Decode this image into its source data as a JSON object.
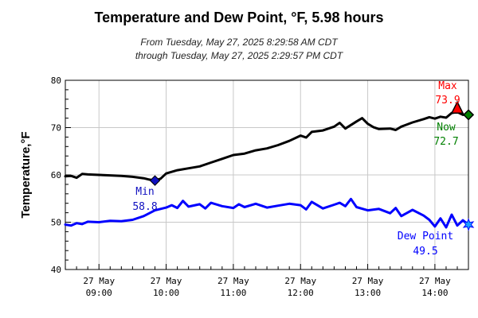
{
  "header": {
    "title": "Temperature and Dew Point, °F, 5.98 hours",
    "subtitle_line1": "From Tuesday, May 27, 2025 8:29:58 AM CDT",
    "subtitle_line2": "through Tuesday, May 27, 2025 2:29:57 PM CDT"
  },
  "colors": {
    "temperature": "#000000",
    "dew_point": "#0000ff",
    "max": "#ff0000",
    "now": "#008000",
    "min": "#1010c0",
    "grid": "#c8c8c8"
  },
  "chart_data": {
    "type": "line",
    "title": "Temperature and Dew Point, °F, 5.98 hours",
    "ylabel": "Temperature,°F",
    "xlabel": "",
    "ylim": [
      40,
      80
    ],
    "yticks": [
      "40",
      "50",
      "60",
      "70",
      "80"
    ],
    "x_range": [
      "08:29:58",
      "14:29:57"
    ],
    "xticks": [
      {
        "date": "27 May",
        "time": "09:00"
      },
      {
        "date": "27 May",
        "time": "10:00"
      },
      {
        "date": "27 May",
        "time": "11:00"
      },
      {
        "date": "27 May",
        "time": "12:00"
      },
      {
        "date": "27 May",
        "time": "13:00"
      },
      {
        "date": "27 May",
        "time": "14:00"
      }
    ],
    "grid": true,
    "series": [
      {
        "key": "temperature",
        "color": "#000000",
        "points": [
          [
            "08:30",
            59.7
          ],
          [
            "08:35",
            59.8
          ],
          [
            "08:40",
            59.4
          ],
          [
            "08:45",
            60.2
          ],
          [
            "08:50",
            60.1
          ],
          [
            "09:00",
            60.0
          ],
          [
            "09:10",
            59.9
          ],
          [
            "09:20",
            59.8
          ],
          [
            "09:30",
            59.6
          ],
          [
            "09:40",
            59.3
          ],
          [
            "09:45",
            59.0
          ],
          [
            "09:50",
            58.8
          ],
          [
            "09:55",
            59.2
          ],
          [
            "10:00",
            60.3
          ],
          [
            "10:10",
            61.0
          ],
          [
            "10:20",
            61.4
          ],
          [
            "10:30",
            61.8
          ],
          [
            "10:40",
            62.6
          ],
          [
            "10:50",
            63.4
          ],
          [
            "11:00",
            64.2
          ],
          [
            "11:10",
            64.5
          ],
          [
            "11:20",
            65.2
          ],
          [
            "11:30",
            65.6
          ],
          [
            "11:40",
            66.3
          ],
          [
            "11:50",
            67.2
          ],
          [
            "12:00",
            68.3
          ],
          [
            "12:05",
            67.9
          ],
          [
            "12:10",
            69.1
          ],
          [
            "12:20",
            69.4
          ],
          [
            "12:30",
            70.2
          ],
          [
            "12:35",
            71.0
          ],
          [
            "12:40",
            69.8
          ],
          [
            "12:50",
            71.3
          ],
          [
            "12:55",
            72.0
          ],
          [
            "13:00",
            70.8
          ],
          [
            "13:05",
            70.1
          ],
          [
            "13:10",
            69.7
          ],
          [
            "13:20",
            69.8
          ],
          [
            "13:25",
            69.5
          ],
          [
            "13:30",
            70.2
          ],
          [
            "13:40",
            71.1
          ],
          [
            "13:50",
            71.8
          ],
          [
            "13:55",
            72.2
          ],
          [
            "14:00",
            71.9
          ],
          [
            "14:05",
            72.3
          ],
          [
            "14:10",
            72.1
          ],
          [
            "14:15",
            73.1
          ],
          [
            "14:20",
            73.3
          ],
          [
            "14:25",
            72.7
          ],
          [
            "14:30",
            72.7
          ]
        ]
      },
      {
        "key": "dew_point",
        "color": "#0000ff",
        "points": [
          [
            "08:30",
            49.5
          ],
          [
            "08:35",
            49.3
          ],
          [
            "08:40",
            49.8
          ],
          [
            "08:45",
            49.6
          ],
          [
            "08:50",
            50.1
          ],
          [
            "09:00",
            50.0
          ],
          [
            "09:10",
            50.3
          ],
          [
            "09:20",
            50.2
          ],
          [
            "09:30",
            50.5
          ],
          [
            "09:40",
            51.3
          ],
          [
            "09:50",
            52.5
          ],
          [
            "10:00",
            53.1
          ],
          [
            "10:05",
            53.6
          ],
          [
            "10:10",
            53.0
          ],
          [
            "10:15",
            54.5
          ],
          [
            "10:20",
            53.3
          ],
          [
            "10:30",
            53.8
          ],
          [
            "10:35",
            52.9
          ],
          [
            "10:40",
            54.1
          ],
          [
            "10:50",
            53.4
          ],
          [
            "11:00",
            53.0
          ],
          [
            "11:05",
            53.8
          ],
          [
            "11:10",
            53.2
          ],
          [
            "11:20",
            53.9
          ],
          [
            "11:30",
            53.1
          ],
          [
            "11:40",
            53.5
          ],
          [
            "11:50",
            53.9
          ],
          [
            "12:00",
            53.6
          ],
          [
            "12:05",
            52.7
          ],
          [
            "12:10",
            54.3
          ],
          [
            "12:20",
            52.9
          ],
          [
            "12:30",
            53.7
          ],
          [
            "12:35",
            54.1
          ],
          [
            "12:40",
            53.4
          ],
          [
            "12:45",
            54.9
          ],
          [
            "12:50",
            53.2
          ],
          [
            "13:00",
            52.5
          ],
          [
            "13:10",
            52.8
          ],
          [
            "13:20",
            51.9
          ],
          [
            "13:25",
            53.0
          ],
          [
            "13:30",
            51.3
          ],
          [
            "13:40",
            52.6
          ],
          [
            "13:50",
            51.4
          ],
          [
            "13:55",
            50.5
          ],
          [
            "14:00",
            49.1
          ],
          [
            "14:05",
            50.8
          ],
          [
            "14:10",
            48.9
          ],
          [
            "14:15",
            51.6
          ],
          [
            "14:20",
            49.3
          ],
          [
            "14:25",
            50.4
          ],
          [
            "14:30",
            49.5
          ]
        ]
      }
    ],
    "annotations": {
      "max": {
        "label": "Max",
        "value": "73.9",
        "time": "14:20",
        "y": 73.9,
        "color": "#ff0000"
      },
      "now": {
        "label": "Now",
        "value": "72.7",
        "time": "14:30",
        "y": 72.7,
        "color": "#008000"
      },
      "min": {
        "label": "Min",
        "value": "58.8",
        "time": "09:50",
        "y": 58.8,
        "color": "#1010c0"
      },
      "dew_point": {
        "label": "Dew Point",
        "value": "49.5",
        "time": "14:30",
        "y": 49.5,
        "color": "#0000ff"
      }
    }
  }
}
